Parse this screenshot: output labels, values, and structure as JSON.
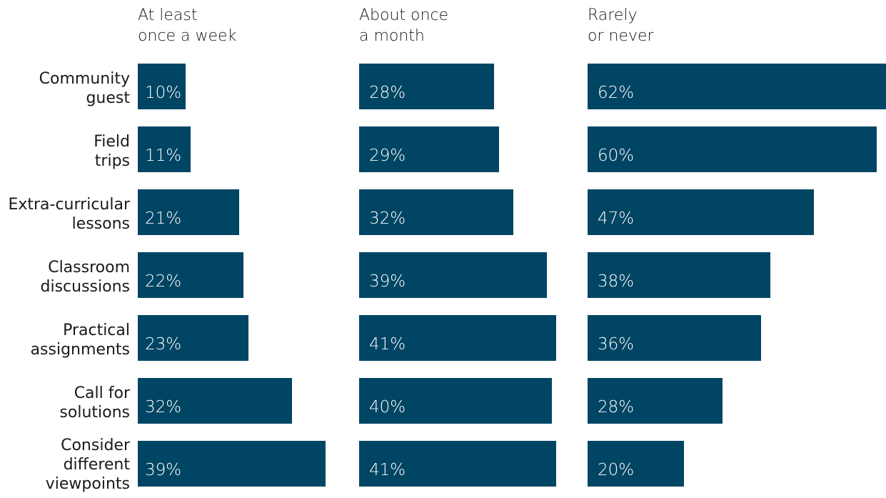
{
  "chart_data": {
    "type": "bar",
    "orientation": "horizontal",
    "layout": "small-multiples",
    "value_format": "{v}%",
    "xlim": [
      0,
      62
    ],
    "categories": [
      [
        "Community",
        "guest"
      ],
      [
        "Field",
        "trips"
      ],
      [
        "Extra-curricular",
        "lessons"
      ],
      [
        "Classroom",
        "discussions"
      ],
      [
        "Practical",
        "assignments"
      ],
      [
        "Call for",
        "solutions"
      ],
      [
        "Consider",
        "different",
        "viewpoints"
      ]
    ],
    "series": [
      {
        "name_lines": [
          "At least",
          "once a week"
        ],
        "values": [
          10,
          11,
          21,
          22,
          23,
          32,
          39
        ]
      },
      {
        "name_lines": [
          "About once",
          "a month"
        ],
        "values": [
          28,
          29,
          32,
          39,
          41,
          40,
          41
        ]
      },
      {
        "name_lines": [
          "Rarely",
          "or never"
        ],
        "values": [
          62,
          60,
          47,
          38,
          36,
          28,
          20
        ]
      }
    ],
    "colors": {
      "bar": "#004563",
      "bar_text": "#ffffff",
      "text": "#1a1a1a"
    }
  }
}
